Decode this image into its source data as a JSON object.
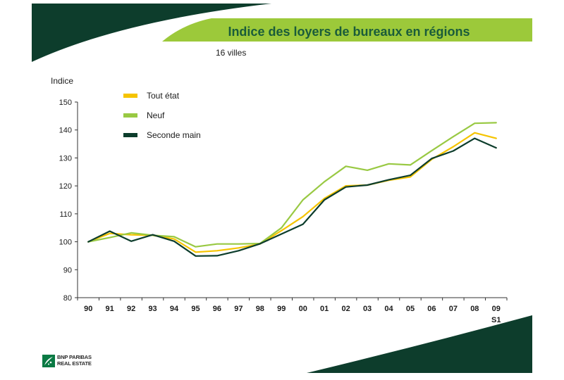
{
  "slide": {
    "title": "Indice des loyers de bureaux en régions",
    "subtitle": "16 villes",
    "brand_line1": "BNP PARIBAS",
    "brand_line2": "REAL ESTATE",
    "colors": {
      "dark_green": "#0d3d2c",
      "banner_green": "#9cc93a",
      "title_green": "#1a5c3a"
    }
  },
  "chart_data": {
    "type": "line",
    "title": "Indice des loyers de bureaux en régions",
    "ylabel": "Indice",
    "xlabel": "",
    "ylim": [
      80,
      150
    ],
    "yticks": [
      80,
      90,
      100,
      110,
      120,
      130,
      140,
      150
    ],
    "categories": [
      "90",
      "91",
      "92",
      "93",
      "94",
      "95",
      "96",
      "97",
      "98",
      "99",
      "00",
      "01",
      "02",
      "03",
      "04",
      "05",
      "06",
      "07",
      "08",
      "09"
    ],
    "last_category_sub": "S1",
    "legend_position": "top-left",
    "series": [
      {
        "name": "Tout état",
        "color": "#f5c400",
        "values": [
          100,
          103,
          102.5,
          102.3,
          101,
          96.3,
          96.8,
          97.8,
          99.2,
          104,
          109,
          115.5,
          120,
          120.3,
          122,
          123.2,
          129.5,
          134,
          139,
          137
        ]
      },
      {
        "name": "Neuf",
        "color": "#99c943",
        "values": [
          100,
          101.5,
          103.2,
          102.3,
          101.8,
          98.2,
          99.2,
          99.2,
          99.4,
          105,
          115,
          121.5,
          127,
          125.6,
          127.9,
          127.5,
          132.6,
          137.6,
          142.4,
          142.6
        ]
      },
      {
        "name": "Seconde main",
        "color": "#0d3d2c",
        "values": [
          100,
          103.8,
          100.2,
          102.5,
          100.2,
          94.9,
          95,
          96.8,
          99.3,
          102.8,
          106.3,
          115,
          119.6,
          120.3,
          122.2,
          123.8,
          129.8,
          132.5,
          137,
          133.6
        ]
      }
    ]
  }
}
